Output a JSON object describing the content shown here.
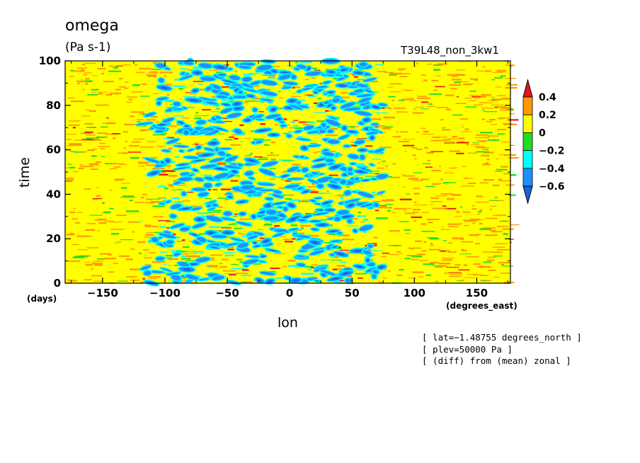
{
  "header": {
    "title": "omega",
    "units": "(Pa s-1)",
    "run_name": "T39L48_non_3kw1"
  },
  "chart_data": {
    "type": "heatmap",
    "xlabel": "lon",
    "ylabel": "time",
    "x_unit": "(degrees_east)",
    "y_unit": "(days)",
    "xlim": [
      -180,
      177
    ],
    "ylim": [
      0,
      100
    ],
    "x_ticks": [
      -150,
      -100,
      -50,
      0,
      50,
      100,
      150
    ],
    "x_tick_labels": [
      "−150",
      "−100",
      "−50",
      "0",
      "50",
      "100",
      "150"
    ],
    "y_ticks": [
      0,
      20,
      40,
      60,
      80,
      100
    ],
    "y_tick_labels": [
      "0",
      "20",
      "40",
      "60",
      "80",
      "100"
    ],
    "colorbar": {
      "labels": [
        "0.4",
        "0.2",
        "0",
        "−0.2",
        "−0.4",
        "−0.6"
      ],
      "levels": [
        0.4,
        0.2,
        0,
        -0.2,
        -0.4,
        -0.6
      ],
      "colors": [
        "#e8141c",
        "#ff9900",
        "#ffff00",
        "#22dd22",
        "#00ffff",
        "#1e90ff",
        "#1565e0"
      ],
      "extend": "both"
    },
    "description_of_field": {
      "negative_region_lon": [
        -110,
        70
      ],
      "background": "#ffff00"
    }
  },
  "notes": [
    "[ lat=−1.48755 degrees_north ]",
    "[ plev=50000 Pa ]",
    "[ (diff) from (mean) zonal ]"
  ]
}
